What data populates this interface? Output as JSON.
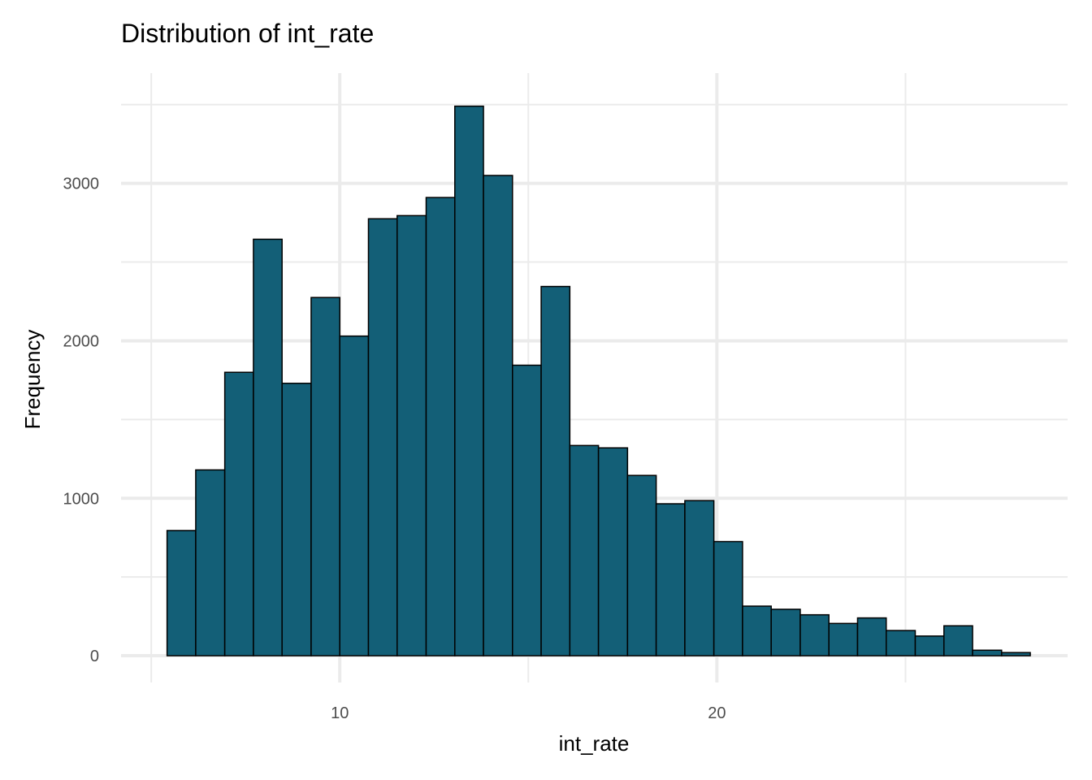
{
  "chart_data": {
    "type": "bar",
    "title": "Distribution of int_rate",
    "xlabel": "int_rate",
    "ylabel": "Frequency",
    "x_ticks": [
      10,
      20
    ],
    "y_ticks": [
      0,
      1000,
      2000,
      3000
    ],
    "xlim": [
      4.2,
      29.3
    ],
    "ylim": [
      -170,
      3700
    ],
    "grid": true,
    "bar_color": "#135f77",
    "bar_outline": "#000000",
    "bin_width": 0.7625,
    "bins": [
      {
        "x_start": 5.42,
        "x_end": 6.18,
        "count": 795
      },
      {
        "x_start": 6.18,
        "x_end": 6.95,
        "count": 1180
      },
      {
        "x_start": 6.95,
        "x_end": 7.71,
        "count": 1800
      },
      {
        "x_start": 7.71,
        "x_end": 8.47,
        "count": 2645
      },
      {
        "x_start": 8.47,
        "x_end": 9.24,
        "count": 1730
      },
      {
        "x_start": 9.24,
        "x_end": 10.0,
        "count": 2275
      },
      {
        "x_start": 10.0,
        "x_end": 10.76,
        "count": 2030
      },
      {
        "x_start": 10.76,
        "x_end": 11.52,
        "count": 2775
      },
      {
        "x_start": 11.52,
        "x_end": 12.29,
        "count": 2795
      },
      {
        "x_start": 12.29,
        "x_end": 13.05,
        "count": 2910
      },
      {
        "x_start": 13.05,
        "x_end": 13.81,
        "count": 3490
      },
      {
        "x_start": 13.81,
        "x_end": 14.58,
        "count": 3050
      },
      {
        "x_start": 14.58,
        "x_end": 15.34,
        "count": 1845
      },
      {
        "x_start": 15.34,
        "x_end": 16.1,
        "count": 2345
      },
      {
        "x_start": 16.1,
        "x_end": 16.86,
        "count": 1335
      },
      {
        "x_start": 16.86,
        "x_end": 17.63,
        "count": 1320
      },
      {
        "x_start": 17.63,
        "x_end": 18.39,
        "count": 1145
      },
      {
        "x_start": 18.39,
        "x_end": 19.15,
        "count": 965
      },
      {
        "x_start": 19.15,
        "x_end": 19.92,
        "count": 985
      },
      {
        "x_start": 19.92,
        "x_end": 20.68,
        "count": 725
      },
      {
        "x_start": 20.68,
        "x_end": 21.44,
        "count": 315
      },
      {
        "x_start": 21.44,
        "x_end": 22.21,
        "count": 295
      },
      {
        "x_start": 22.21,
        "x_end": 22.97,
        "count": 260
      },
      {
        "x_start": 22.97,
        "x_end": 23.73,
        "count": 205
      },
      {
        "x_start": 23.73,
        "x_end": 24.49,
        "count": 240
      },
      {
        "x_start": 24.49,
        "x_end": 25.26,
        "count": 160
      },
      {
        "x_start": 25.26,
        "x_end": 26.02,
        "count": 125
      },
      {
        "x_start": 26.02,
        "x_end": 26.78,
        "count": 190
      },
      {
        "x_start": 26.78,
        "x_end": 27.55,
        "count": 35
      },
      {
        "x_start": 27.55,
        "x_end": 28.31,
        "count": 20
      }
    ]
  }
}
